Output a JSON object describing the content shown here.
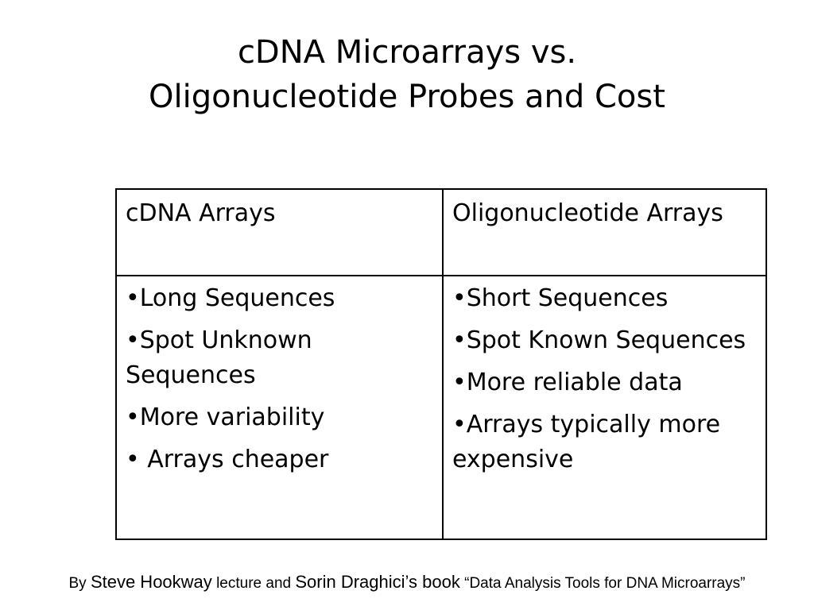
{
  "slide": {
    "title_line1": "cDNA Microarrays vs.",
    "title_line2": "Oligonucleotide Probes and Cost"
  },
  "table": {
    "headers": [
      "cDNA Arrays",
      "Oligonucleotide Arrays"
    ],
    "cdna_items": [
      "•Long Sequences",
      "•Spot Unknown Sequences",
      "•More variability",
      "• Arrays cheaper"
    ],
    "oligo_items": [
      "•Short Sequences",
      "•Spot Known Sequences",
      "•More reliable data",
      "•Arrays typically more expensive"
    ]
  },
  "footer": {
    "by": "By ",
    "author": "Steve Hookway",
    "lecture": " lecture and ",
    "second_author": "Sorin Draghici’s book",
    "book_title": " “Data Analysis Tools for DNA Microarrays”"
  }
}
